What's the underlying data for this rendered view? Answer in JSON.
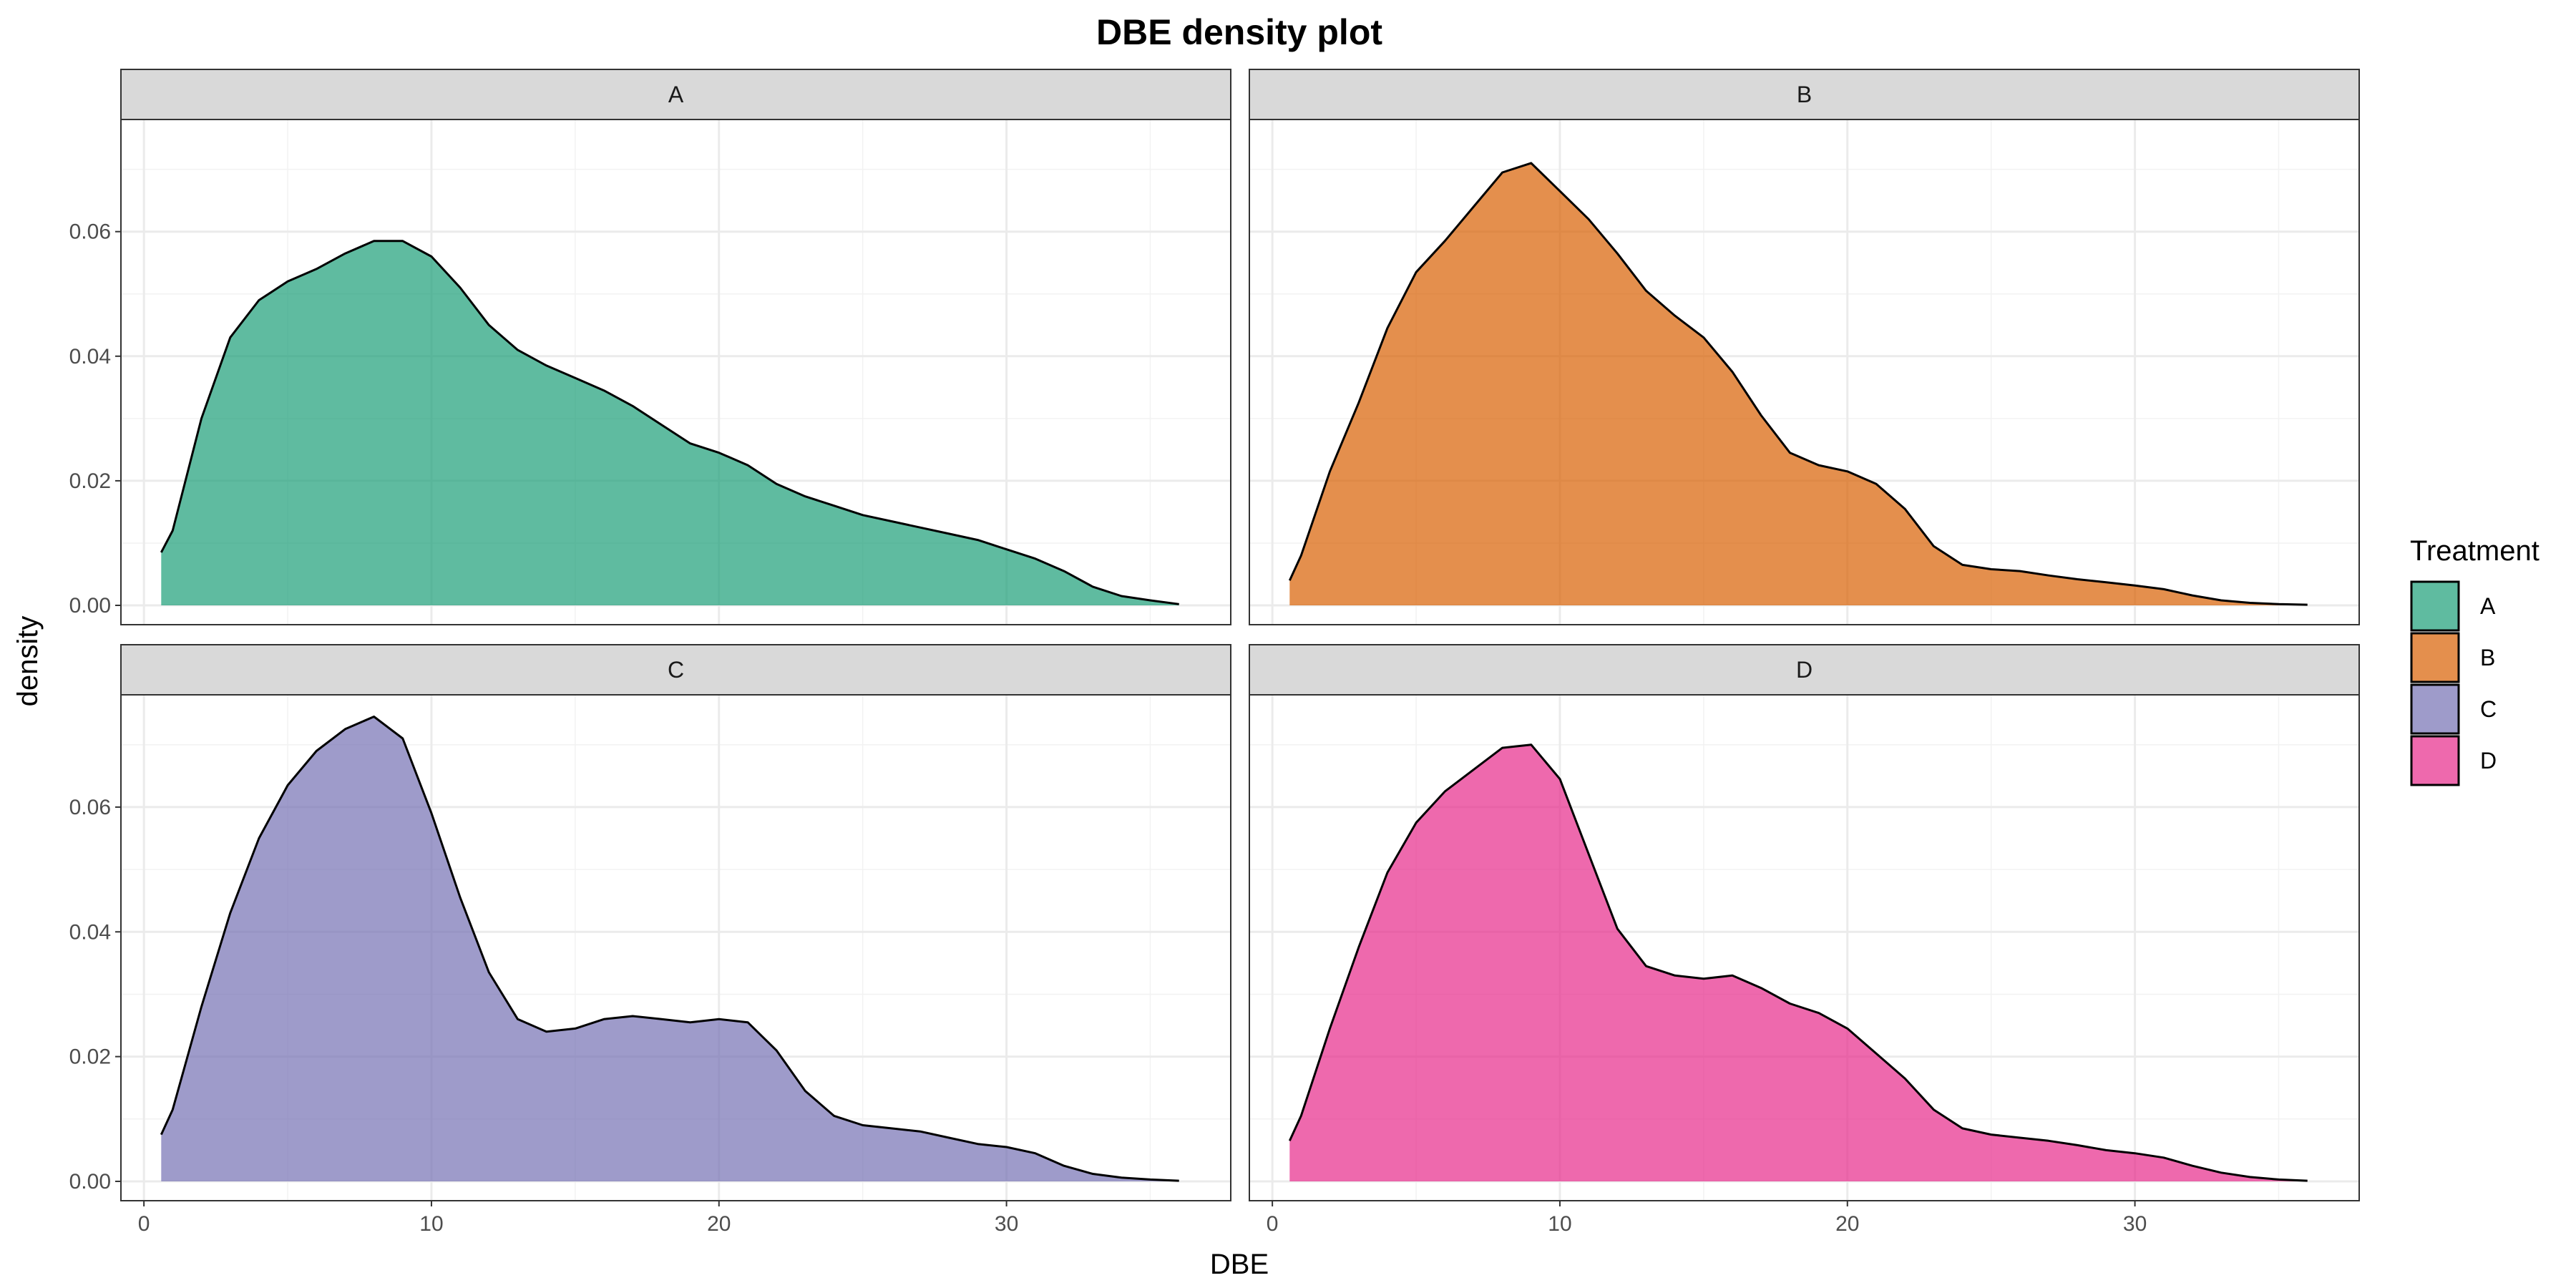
{
  "chart_data": {
    "type": "area",
    "title": "DBE density plot",
    "xlabel": "DBE",
    "ylabel": "density",
    "xlim": [
      -0.8,
      37.8
    ],
    "ylim": [
      -0.0031,
      0.078
    ],
    "x_ticks": [
      0,
      10,
      20,
      30
    ],
    "y_ticks": [
      0.0,
      0.02,
      0.04,
      0.06
    ],
    "y_tick_labels": [
      "0.00",
      "0.02",
      "0.04",
      "0.06"
    ],
    "grid": true,
    "facet_layout": "2x2",
    "legend": {
      "title": "Treatment",
      "position": "right",
      "entries": [
        "A",
        "B",
        "C",
        "D"
      ]
    },
    "series": [
      {
        "name": "A",
        "color": "#1B9E77",
        "x": [
          0.6,
          1,
          2,
          3,
          4,
          5,
          6,
          7,
          8,
          9,
          10,
          11,
          12,
          13,
          14,
          15,
          16,
          17,
          18,
          19,
          20,
          21,
          22,
          23,
          24,
          25,
          26,
          27,
          28,
          29,
          30,
          31,
          32,
          33,
          34,
          35,
          36
        ],
        "values": [
          0.0085,
          0.012,
          0.03,
          0.043,
          0.049,
          0.052,
          0.054,
          0.0565,
          0.0585,
          0.0585,
          0.056,
          0.051,
          0.045,
          0.041,
          0.0385,
          0.0365,
          0.0345,
          0.032,
          0.029,
          0.026,
          0.0245,
          0.0225,
          0.0195,
          0.0175,
          0.016,
          0.0145,
          0.0135,
          0.0125,
          0.0115,
          0.0105,
          0.009,
          0.0075,
          0.0055,
          0.003,
          0.0015,
          0.0008,
          0.0002
        ]
      },
      {
        "name": "B",
        "color": "#D95F02",
        "x": [
          0.6,
          1,
          2,
          3,
          4,
          5,
          6,
          7,
          8,
          9,
          10,
          11,
          12,
          13,
          14,
          15,
          16,
          17,
          18,
          19,
          20,
          21,
          22,
          23,
          24,
          25,
          26,
          27,
          28,
          29,
          30,
          31,
          32,
          33,
          34,
          35,
          36
        ],
        "values": [
          0.004,
          0.008,
          0.0215,
          0.0325,
          0.0445,
          0.0535,
          0.0585,
          0.064,
          0.0695,
          0.071,
          0.0665,
          0.062,
          0.0565,
          0.0505,
          0.0465,
          0.043,
          0.0375,
          0.0305,
          0.0245,
          0.0225,
          0.0215,
          0.0195,
          0.0155,
          0.0095,
          0.0065,
          0.0058,
          0.0055,
          0.0048,
          0.0042,
          0.0037,
          0.0032,
          0.0026,
          0.0016,
          0.0008,
          0.0004,
          0.0002,
          0.0001
        ]
      },
      {
        "name": "C",
        "color": "#7570B3",
        "x": [
          0.6,
          1,
          2,
          3,
          4,
          5,
          6,
          7,
          8,
          9,
          10,
          11,
          12,
          13,
          14,
          15,
          16,
          17,
          18,
          19,
          20,
          21,
          22,
          23,
          24,
          25,
          26,
          27,
          28,
          29,
          30,
          31,
          32,
          33,
          34,
          35,
          36
        ],
        "values": [
          0.0075,
          0.0115,
          0.028,
          0.043,
          0.055,
          0.0635,
          0.069,
          0.0725,
          0.0745,
          0.071,
          0.059,
          0.0455,
          0.0335,
          0.026,
          0.024,
          0.0245,
          0.026,
          0.0265,
          0.026,
          0.0255,
          0.026,
          0.0255,
          0.021,
          0.0145,
          0.0105,
          0.009,
          0.0085,
          0.008,
          0.007,
          0.006,
          0.0055,
          0.0045,
          0.0025,
          0.0012,
          0.0006,
          0.0003,
          0.0001
        ]
      },
      {
        "name": "D",
        "color": "#E7298A",
        "x": [
          0.6,
          1,
          2,
          3,
          4,
          5,
          6,
          7,
          8,
          9,
          10,
          11,
          12,
          13,
          14,
          15,
          16,
          17,
          18,
          19,
          20,
          21,
          22,
          23,
          24,
          25,
          26,
          27,
          28,
          29,
          30,
          31,
          32,
          33,
          34,
          35,
          36
        ],
        "values": [
          0.0065,
          0.0105,
          0.0245,
          0.0375,
          0.0495,
          0.0575,
          0.0625,
          0.066,
          0.0695,
          0.07,
          0.0645,
          0.0525,
          0.0405,
          0.0345,
          0.033,
          0.0325,
          0.033,
          0.031,
          0.0285,
          0.027,
          0.0245,
          0.0205,
          0.0165,
          0.0115,
          0.0085,
          0.0075,
          0.007,
          0.0065,
          0.0058,
          0.005,
          0.0045,
          0.0038,
          0.0025,
          0.0014,
          0.0007,
          0.0003,
          0.0001
        ]
      }
    ]
  }
}
